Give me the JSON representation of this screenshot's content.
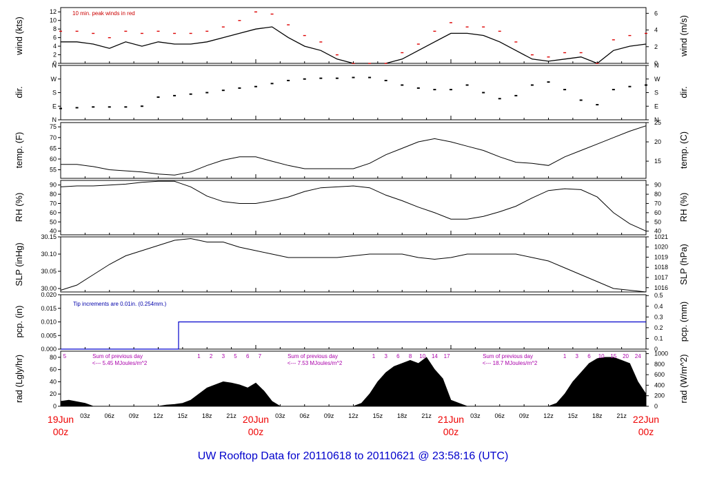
{
  "title": "UW Rooftop Data for 20110618  to  20110621 @ 23:58:16  (UTC)",
  "colors": {
    "title": "#0000cc",
    "date_labels": "#ee0000",
    "peak": "#dd0000",
    "precip": "#0000cc",
    "annotation_red": "#cc0000",
    "annotation_blue": "#0000aa",
    "annotation_purple": "#aa00aa"
  },
  "chart_data": [
    {
      "type": "line",
      "panel": "wind",
      "ylabel": "wind (kts)",
      "ylabel_right": "wind (m/s)",
      "ylim": [
        0,
        13
      ],
      "yticks": [
        "0",
        "2",
        "4",
        "6",
        "8",
        "10",
        "12"
      ],
      "ylim_right": [
        0,
        6.69
      ],
      "yticks_right": [
        "0",
        "2",
        "4",
        "6"
      ],
      "annotation": "10 min. peak winds in red",
      "series": [
        {
          "x": [
            0,
            2,
            4,
            6,
            8,
            10,
            12,
            14,
            16,
            18,
            20,
            22,
            24,
            26,
            28,
            30,
            32,
            34,
            36,
            38,
            40,
            42,
            44,
            46,
            48,
            50,
            52,
            54,
            56,
            58,
            60,
            62,
            64,
            66,
            68,
            70,
            72
          ],
          "values": [
            5,
            5,
            4.5,
            3.5,
            5,
            4,
            5,
            4.5,
            4.5,
            5,
            6,
            7,
            8,
            8.5,
            6,
            4,
            3,
            1,
            0,
            0,
            0,
            1,
            3,
            5,
            7,
            7,
            6.5,
            5,
            3,
            1,
            0.5,
            1,
            1.5,
            0,
            3,
            4,
            4.5
          ]
        },
        {
          "x": [
            0,
            2,
            4,
            6,
            8,
            10,
            12,
            14,
            16,
            18,
            20,
            22,
            24,
            26,
            28,
            30,
            32,
            34,
            36,
            38,
            40,
            42,
            44,
            46,
            48,
            50,
            52,
            54,
            56,
            58,
            60,
            62,
            64,
            66,
            68,
            70,
            72
          ],
          "values": [
            7.5,
            7.5,
            7,
            6,
            7.5,
            7,
            7.5,
            7,
            7,
            7.5,
            8.5,
            10,
            12,
            11.5,
            9,
            6.5,
            5,
            2,
            0,
            0,
            0,
            2.5,
            4.5,
            7.5,
            9.5,
            8.5,
            8.5,
            7.5,
            5,
            2,
            1.5,
            2.5,
            2.5,
            0,
            5.5,
            6.5,
            7
          ]
        }
      ]
    },
    {
      "type": "scatter",
      "panel": "dir",
      "ylabel": "dir.",
      "ylabel_right": "dir.",
      "yticks": [
        "N",
        "E",
        "S",
        "W",
        "N"
      ],
      "x": [
        0,
        2,
        4,
        6,
        8,
        10,
        12,
        14,
        16,
        18,
        20,
        22,
        24,
        26,
        28,
        30,
        32,
        34,
        36,
        38,
        40,
        42,
        44,
        46,
        48,
        50,
        52,
        54,
        56,
        58,
        60,
        62,
        64,
        66,
        68,
        70,
        72
      ],
      "values": [
        75,
        80,
        85,
        85,
        85,
        90,
        150,
        160,
        170,
        180,
        195,
        210,
        220,
        240,
        260,
        270,
        275,
        275,
        280,
        280,
        260,
        230,
        210,
        200,
        200,
        230,
        180,
        140,
        160,
        230,
        250,
        200,
        130,
        100,
        200,
        220,
        230
      ]
    },
    {
      "type": "line",
      "panel": "temp",
      "ylabel": "temp. (F)",
      "ylabel_right": "temp. (C)",
      "ylim": [
        51,
        77
      ],
      "yticks": [
        "55",
        "60",
        "65",
        "70",
        "75"
      ],
      "yticks_right": [
        "15",
        "20",
        "25"
      ],
      "x": [
        0,
        2,
        4,
        6,
        8,
        10,
        12,
        14,
        16,
        18,
        20,
        22,
        24,
        26,
        28,
        30,
        32,
        34,
        36,
        38,
        40,
        42,
        44,
        46,
        48,
        50,
        52,
        54,
        56,
        58,
        60,
        62,
        64,
        66,
        68,
        70,
        72
      ],
      "values": [
        57.5,
        57.5,
        56.5,
        55,
        54.5,
        54,
        53,
        52.5,
        54,
        57,
        59.5,
        61,
        61,
        59,
        57,
        55.5,
        55.5,
        55.5,
        55.5,
        58,
        62,
        65,
        68,
        69.5,
        68,
        66,
        64,
        61,
        58.5,
        58,
        57,
        61,
        64,
        67,
        70,
        73,
        75.5
      ]
    },
    {
      "type": "line",
      "panel": "rh",
      "ylabel": "RH (%)",
      "ylabel_right": "RH (%)",
      "ylim": [
        36,
        95
      ],
      "yticks": [
        "40",
        "50",
        "60",
        "70",
        "80",
        "90"
      ],
      "x": [
        0,
        2,
        4,
        6,
        8,
        10,
        12,
        14,
        16,
        18,
        20,
        22,
        24,
        26,
        28,
        30,
        32,
        34,
        36,
        38,
        40,
        42,
        44,
        46,
        48,
        50,
        52,
        54,
        56,
        58,
        60,
        62,
        64,
        66,
        68,
        70,
        72
      ],
      "values": [
        88,
        89,
        89,
        90,
        91,
        93,
        94,
        94,
        88,
        78,
        72,
        70,
        70,
        73,
        77,
        83,
        87,
        88,
        89,
        87,
        79,
        73,
        66,
        60,
        53,
        53,
        56,
        61,
        67,
        76,
        84,
        86,
        85,
        77,
        60,
        48,
        40
      ]
    },
    {
      "type": "line",
      "panel": "slp",
      "ylabel": "SLP (inHg)",
      "ylabel_right": "SLP (hPa)",
      "ylim": [
        29.99,
        30.15
      ],
      "yticks": [
        "30.00",
        "30.05",
        "30.10",
        "30.15"
      ],
      "yticks_right": [
        "1016",
        "1017",
        "1018",
        "1019",
        "1020",
        "1021"
      ],
      "x": [
        0,
        2,
        4,
        6,
        8,
        10,
        12,
        14,
        16,
        18,
        20,
        22,
        24,
        26,
        28,
        30,
        32,
        34,
        36,
        38,
        40,
        42,
        44,
        46,
        48,
        50,
        52,
        54,
        56,
        58,
        60,
        62,
        64,
        66,
        68,
        70,
        72
      ],
      "values": [
        29.995,
        30.01,
        30.04,
        30.07,
        30.095,
        30.11,
        30.125,
        30.14,
        30.145,
        30.135,
        30.135,
        30.12,
        30.11,
        30.1,
        30.09,
        30.09,
        30.09,
        30.09,
        30.095,
        30.1,
        30.1,
        30.1,
        30.09,
        30.085,
        30.09,
        30.1,
        30.1,
        30.1,
        30.1,
        30.09,
        30.08,
        30.06,
        30.04,
        30.02,
        30.0,
        29.995,
        29.99
      ]
    },
    {
      "type": "line",
      "panel": "pcp",
      "ylabel": "pcp. (in)",
      "ylabel_right": "pcp. (mm)",
      "ylim": [
        0,
        0.02
      ],
      "yticks": [
        "0.000",
        "0.005",
        "0.010",
        "0.015",
        "0.020"
      ],
      "yticks_right": [
        "0",
        "0.1",
        "0.2",
        "0.3",
        "0.4",
        "0.5"
      ],
      "annotation": "Tip increments are 0.01in. (0.254mm.)",
      "x": [
        0,
        14.5,
        14.5,
        72
      ],
      "values": [
        0,
        0,
        0.01,
        0.01
      ]
    },
    {
      "type": "area",
      "panel": "rad",
      "ylabel": "rad (Lgly/hr)",
      "ylabel_right": "rad (W/m^2)",
      "ylim": [
        0,
        90
      ],
      "yticks": [
        "0",
        "20",
        "40",
        "60",
        "80"
      ],
      "yticks_right": [
        "0",
        "200",
        "400",
        "600",
        "800",
        "1000"
      ],
      "sum_label": "Sum of previous day",
      "sums": [
        "<--- 5.45 MJoules/m^2",
        "<--- 7.53 MJoules/m^2",
        "<--- 18.7 MJoules/m^2"
      ],
      "hour_marks": [
        "5",
        "1",
        "2",
        "3",
        "5",
        "6",
        "7",
        "1",
        "3",
        "6",
        "8",
        "10",
        "14",
        "17",
        "1",
        "3",
        "6",
        "10",
        "15",
        "20",
        "24"
      ],
      "x": [
        0,
        1,
        3,
        4,
        12,
        13,
        14,
        15,
        16,
        17,
        18,
        19,
        20,
        21,
        22,
        23,
        24,
        25,
        26,
        27,
        36,
        37,
        38,
        39,
        40,
        41,
        42,
        43,
        44,
        45,
        46,
        47,
        48,
        49,
        50,
        51,
        60,
        61,
        62,
        63,
        64,
        65,
        66,
        67,
        68,
        69,
        70,
        71,
        72
      ],
      "values": [
        8,
        10,
        5,
        0,
        0,
        2,
        3,
        5,
        10,
        20,
        30,
        35,
        40,
        38,
        35,
        30,
        38,
        25,
        8,
        0,
        0,
        5,
        20,
        40,
        55,
        65,
        70,
        75,
        70,
        80,
        60,
        45,
        10,
        5,
        0,
        0,
        0,
        5,
        20,
        40,
        55,
        70,
        78,
        80,
        80,
        75,
        70,
        40,
        20
      ]
    }
  ],
  "xaxis": {
    "hour_labels": [
      "03z",
      "06z",
      "09z",
      "12z",
      "15z",
      "18z",
      "21z",
      "03z",
      "06z",
      "09z",
      "12z",
      "15z",
      "18z",
      "21z",
      "03z",
      "06z",
      "09z",
      "12z",
      "15z",
      "18z",
      "21z"
    ],
    "date_labels": [
      {
        "day": "19Jun",
        "hour": "00z"
      },
      {
        "day": "20Jun",
        "hour": "00z"
      },
      {
        "day": "21Jun",
        "hour": "00z"
      },
      {
        "day": "22Jun",
        "hour": "00z"
      }
    ]
  }
}
